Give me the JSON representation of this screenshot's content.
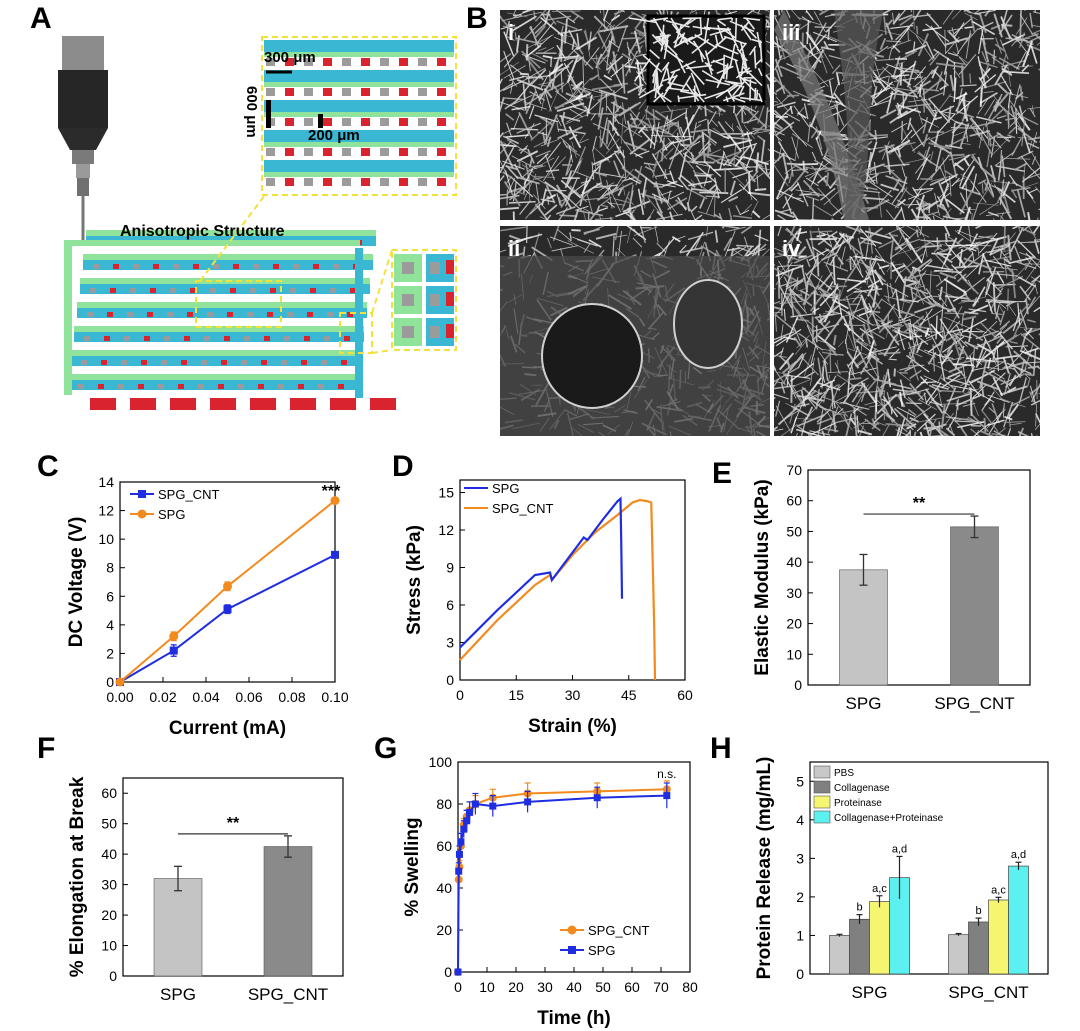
{
  "panel_letters": {
    "A": "A",
    "B": "B",
    "C": "C",
    "D": "D",
    "E": "E",
    "F": "F",
    "G": "G",
    "H": "H"
  },
  "panelA": {
    "label": "Anisotropic Structure",
    "dim_300": "300 μm",
    "dim_600": "600 μm",
    "dim_200": "200 μm",
    "colors": {
      "teal": "#3ab7d3",
      "green": "#8fe39a",
      "red": "#d9232e",
      "gray": "#9b9b9b",
      "dark": "#333333",
      "highlight": "#f3e23a"
    }
  },
  "panelB": {
    "subpanels": [
      "i",
      "iii",
      "ii",
      "iv"
    ]
  },
  "chart_data": [
    {
      "id": "C",
      "type": "line",
      "xlabel": "Current (mA)",
      "ylabel": "DC Voltage (V)",
      "xlim": [
        0,
        0.1
      ],
      "ylim": [
        0,
        14
      ],
      "xticks": [
        "0.00",
        "0.02",
        "0.04",
        "0.06",
        "0.08",
        "0.10"
      ],
      "xtick_values": [
        0,
        0.02,
        0.04,
        0.06,
        0.08,
        0.1
      ],
      "yticks": [
        0,
        2,
        4,
        6,
        8,
        10,
        12,
        14
      ],
      "annotation": "***",
      "series": [
        {
          "name": "SPG_CNT",
          "color": "#1f2de0",
          "x": [
            0,
            0.025,
            0.05,
            0.1
          ],
          "y": [
            0,
            2.2,
            5.1,
            8.9
          ],
          "err": [
            0,
            0.4,
            0.3,
            0.2
          ]
        },
        {
          "name": "SPG",
          "color": "#f28a1e",
          "x": [
            0,
            0.025,
            0.05,
            0.1
          ],
          "y": [
            0,
            3.2,
            6.7,
            12.7
          ],
          "err": [
            0,
            0.3,
            0.3,
            0.2
          ]
        }
      ]
    },
    {
      "id": "D",
      "type": "line",
      "xlabel": "Strain (%)",
      "ylabel": "Stress (kPa)",
      "xlim": [
        0,
        60
      ],
      "ylim": [
        0,
        16
      ],
      "xticks": [
        0,
        15,
        30,
        45,
        60
      ],
      "yticks": [
        0,
        3,
        6,
        9,
        12,
        15
      ],
      "series": [
        {
          "name": "SPG",
          "color": "#1f2de0",
          "x": [
            0,
            10,
            20,
            24,
            24.5,
            30,
            33,
            34,
            38,
            42,
            42.8,
            43,
            43.2
          ],
          "y": [
            2.6,
            5.6,
            8.4,
            8.6,
            8.0,
            10.2,
            11.4,
            11.2,
            12.8,
            14.3,
            14.5,
            11,
            6.5
          ]
        },
        {
          "name": "SPG_CNT",
          "color": "#f28a1e",
          "x": [
            0,
            10,
            20,
            24,
            24.5,
            30,
            36,
            42,
            46,
            48,
            50,
            51,
            51.5,
            51.8,
            52
          ],
          "y": [
            1.6,
            4.8,
            7.6,
            8.4,
            8.0,
            10.0,
            11.8,
            13.2,
            14.2,
            14.4,
            14.3,
            14.2,
            8,
            4,
            0
          ]
        }
      ]
    },
    {
      "id": "E",
      "type": "bar",
      "categories": [
        "SPG",
        "SPG_CNT"
      ],
      "values": [
        37.5,
        51.5
      ],
      "errors": [
        5.0,
        3.5
      ],
      "colors": [
        "#c4c4c4",
        "#8a8a8a"
      ],
      "ylabel": "Elastic Modulus (kPa)",
      "ylim": [
        0,
        70
      ],
      "yticks": [
        0,
        10,
        20,
        30,
        40,
        50,
        60,
        70
      ],
      "annotation": "**"
    },
    {
      "id": "F",
      "type": "bar",
      "categories": [
        "SPG",
        "SPG_CNT"
      ],
      "values": [
        32,
        42.5
      ],
      "errors": [
        4.0,
        3.5
      ],
      "colors": [
        "#c4c4c4",
        "#8a8a8a"
      ],
      "ylabel": "% Elongation at Break",
      "ylim": [
        0,
        65
      ],
      "yticks": [
        0,
        10,
        20,
        30,
        40,
        50,
        60
      ],
      "annotation": "**"
    },
    {
      "id": "G",
      "type": "line",
      "xlabel": "Time (h)",
      "ylabel": "% Swelling",
      "xlim": [
        0,
        80
      ],
      "ylim": [
        0,
        100
      ],
      "xticks": [
        0,
        10,
        20,
        30,
        40,
        50,
        60,
        70,
        80
      ],
      "yticks": [
        0,
        20,
        40,
        60,
        80,
        100
      ],
      "annotation": "n.s.",
      "series": [
        {
          "name": "SPG_CNT",
          "color": "#f28a1e",
          "x": [
            0,
            0.25,
            0.5,
            1,
            2,
            3,
            4,
            6,
            12,
            24,
            48,
            72
          ],
          "y": [
            0,
            44,
            50,
            60,
            70,
            74,
            77,
            80,
            83,
            85,
            86,
            87
          ],
          "err": [
            0,
            3,
            3,
            3,
            3,
            3,
            4,
            4,
            4,
            5,
            4,
            4
          ]
        },
        {
          "name": "SPG",
          "color": "#1f2de0",
          "x": [
            0,
            0.25,
            0.5,
            1,
            2,
            3,
            4,
            6,
            12,
            24,
            48,
            72
          ],
          "y": [
            0,
            48,
            56,
            62,
            68,
            72,
            76,
            80,
            79,
            81,
            83,
            84
          ],
          "err": [
            0,
            4,
            4,
            4,
            4,
            5,
            5,
            5,
            5,
            5,
            5,
            6
          ]
        }
      ]
    },
    {
      "id": "H",
      "type": "bar",
      "categories": [
        "SPG",
        "SPG_CNT"
      ],
      "ylabel": "Protein Release (mg/mL)",
      "ylim": [
        0,
        5.5
      ],
      "yticks": [
        0,
        1,
        2,
        3,
        4,
        5
      ],
      "series": [
        {
          "name": "PBS",
          "color": "#c8c8c8",
          "values": [
            1.0,
            1.02
          ],
          "errors": [
            0.03,
            0.03
          ],
          "labels": [
            "",
            ""
          ]
        },
        {
          "name": "Collagenase",
          "color": "#808080",
          "values": [
            1.42,
            1.35
          ],
          "errors": [
            0.12,
            0.1
          ],
          "labels": [
            "b",
            "b"
          ]
        },
        {
          "name": "Proteinase",
          "color": "#f5f570",
          "values": [
            1.88,
            1.92
          ],
          "errors": [
            0.15,
            0.07
          ],
          "labels": [
            "a,c",
            "a,c"
          ]
        },
        {
          "name": "Collagenase+Proteinase",
          "color": "#5df0f0",
          "values": [
            2.5,
            2.8
          ],
          "errors": [
            0.55,
            0.1
          ],
          "labels": [
            "a,d",
            "a,d"
          ]
        }
      ]
    }
  ]
}
